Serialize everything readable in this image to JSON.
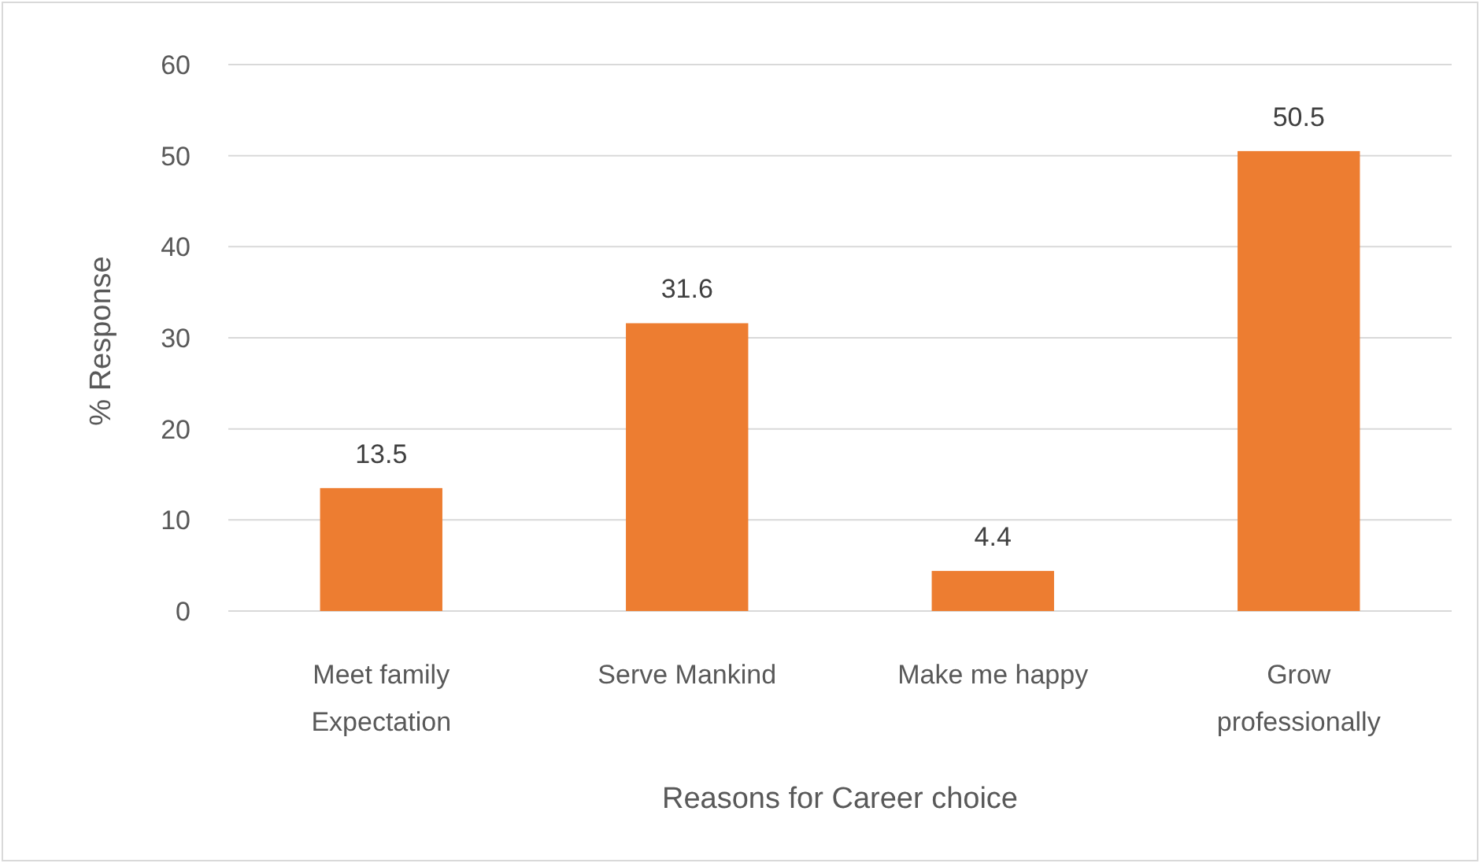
{
  "chart_data": {
    "type": "bar",
    "xlabel": "Reasons for Career choice",
    "ylabel": "% Response",
    "categories": [
      "Meet family Expectation",
      "Serve Mankind",
      "Make me happy",
      "Grow professionally"
    ],
    "values": [
      13.5,
      31.6,
      4.4,
      50.5
    ],
    "color": "#ed7d31",
    "ylim": [
      0,
      60
    ],
    "yticks": [
      0,
      10,
      20,
      30,
      40,
      50,
      60
    ],
    "grid": "y",
    "data_labels": true
  }
}
